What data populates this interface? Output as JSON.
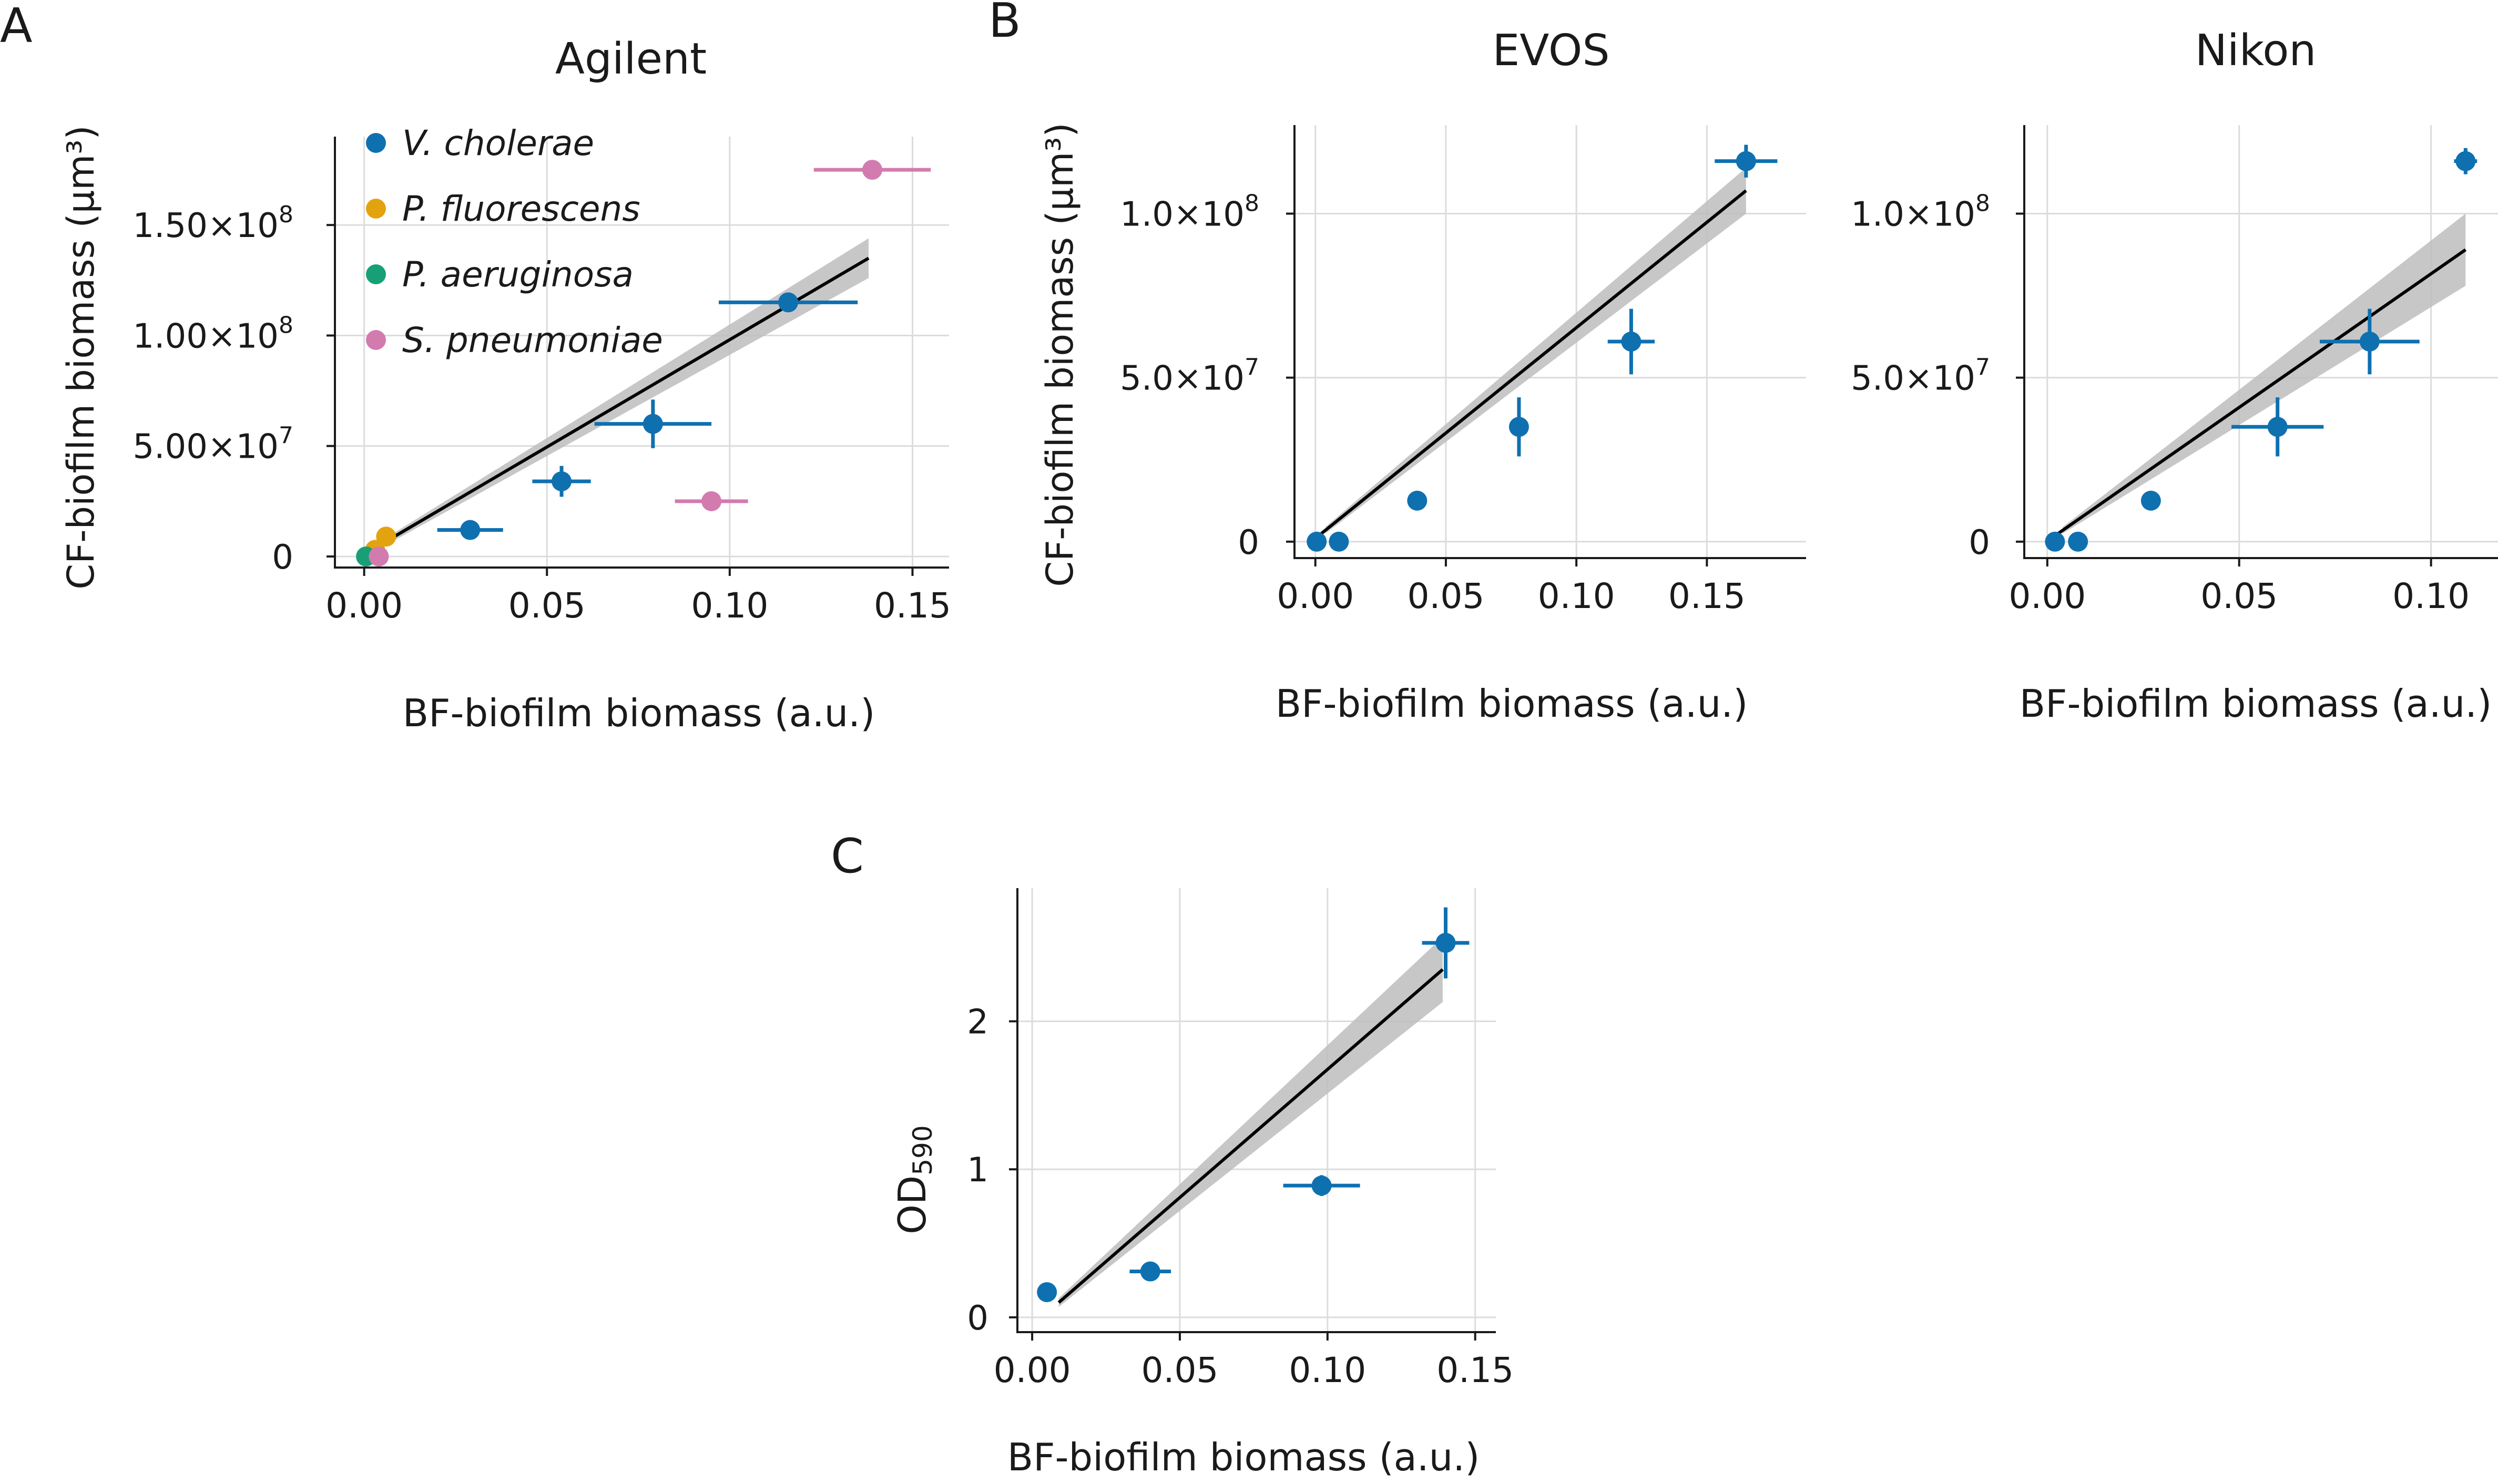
{
  "colors": {
    "vcholerae": "#0F70B0",
    "pfluorescens": "#E3A30F",
    "paeruginosa": "#17A077",
    "spneumoniae": "#D27BAF",
    "fit": "#000000",
    "band": "#bdbdbd",
    "grid": "#dcdcdc",
    "axis": "#1a1a1a"
  },
  "chart_data": [
    {
      "id": "A",
      "panel_label": "A",
      "type": "scatter",
      "title": "Agilent",
      "xlabel": "BF-biofilm biomass (a.u.)",
      "ylabel": "CF-biofilm biomass (µm³)",
      "xlim": [
        -0.008,
        0.16
      ],
      "ylim": [
        -5000000,
        190000000
      ],
      "xticks": [
        0,
        0.05,
        0.1,
        0.15
      ],
      "xtick_labels": [
        "0.00",
        "0.05",
        "0.10",
        "0.15"
      ],
      "yticks": [
        0,
        50000000,
        100000000,
        150000000
      ],
      "ytick_labels": [
        {
          "base": "0",
          "exp": ""
        },
        {
          "base": "5.00×10",
          "exp": "7"
        },
        {
          "base": "1.00×10",
          "exp": "8"
        },
        {
          "base": "1.50×10",
          "exp": "8"
        }
      ],
      "grid": true,
      "legend": {
        "placement": "top-left",
        "entries": [
          {
            "label": "V. cholerae",
            "color": "#0F70B0"
          },
          {
            "label": "P. fluorescens",
            "color": "#E3A30F"
          },
          {
            "label": "P. aeruginosa",
            "color": "#17A077"
          },
          {
            "label": "S. pneumoniae",
            "color": "#D27BAF"
          }
        ]
      },
      "fit": {
        "x": [
          0,
          0.138
        ],
        "y": [
          1000000,
          135000000
        ],
        "band_start": 0.004,
        "band_half": [
          1500000,
          9000000
        ]
      },
      "series": [
        {
          "name": "V. cholerae",
          "color": "#0F70B0",
          "points": [
            {
              "x": 0.029,
              "y": 12000000,
              "xerr": 0.009,
              "yerr": 0
            },
            {
              "x": 0.054,
              "y": 34000000,
              "xerr": 0.008,
              "yerr": 7000000
            },
            {
              "x": 0.079,
              "y": 60000000,
              "xerr": 0.016,
              "yerr": 11000000
            },
            {
              "x": 0.116,
              "y": 115000000,
              "xerr": 0.019,
              "yerr": 4000000
            }
          ]
        },
        {
          "name": "P. fluorescens",
          "color": "#E3A30F",
          "points": [
            {
              "x": 0.006,
              "y": 9000000,
              "xerr": 0,
              "yerr": 0
            },
            {
              "x": 0.003,
              "y": 3000000,
              "xerr": 0,
              "yerr": 0
            }
          ]
        },
        {
          "name": "P. aeruginosa",
          "color": "#17A077",
          "points": [
            {
              "x": 0.0005,
              "y": 0,
              "xerr": 0,
              "yerr": 0
            }
          ]
        },
        {
          "name": "S. pneumoniae",
          "color": "#D27BAF",
          "points": [
            {
              "x": 0.004,
              "y": 0,
              "xerr": 0,
              "yerr": 0
            },
            {
              "x": 0.095,
              "y": 25000000,
              "xerr": 0.01,
              "yerr": 0
            },
            {
              "x": 0.139,
              "y": 175000000,
              "xerr": 0.016,
              "yerr": 0
            }
          ]
        }
      ]
    },
    {
      "id": "B1",
      "panel_label": "B",
      "type": "scatter",
      "title": "EVOS",
      "xlabel": "BF-biofilm biomass (a.u.)",
      "ylabel": "CF-biofilm biomass (µm³)",
      "xlim": [
        -0.008,
        0.188
      ],
      "ylim": [
        -5000000,
        127000000
      ],
      "xticks": [
        0,
        0.05,
        0.1,
        0.15
      ],
      "xtick_labels": [
        "0.00",
        "0.05",
        "0.10",
        "0.15"
      ],
      "yticks": [
        0,
        50000000,
        100000000
      ],
      "ytick_labels": [
        {
          "base": "0",
          "exp": ""
        },
        {
          "base": "5.0×10",
          "exp": "7"
        },
        {
          "base": "1.0×10",
          "exp": "8"
        }
      ],
      "grid": true,
      "fit": {
        "x": [
          0,
          0.165
        ],
        "y": [
          1000000,
          107000000
        ],
        "band_start": 0.004,
        "band_half": [
          1000000,
          7000000
        ]
      },
      "series": [
        {
          "name": "",
          "color": "#0F70B0",
          "points": [
            {
              "x": 0.0005,
              "y": 0,
              "xerr": 0,
              "yerr": 0
            },
            {
              "x": 0.009,
              "y": 0,
              "xerr": 0,
              "yerr": 0
            },
            {
              "x": 0.039,
              "y": 12500000,
              "xerr": 0,
              "yerr": 0
            },
            {
              "x": 0.078,
              "y": 35000000,
              "xerr": 0,
              "yerr": 9000000
            },
            {
              "x": 0.121,
              "y": 61000000,
              "xerr": 0.009,
              "yerr": 10000000
            },
            {
              "x": 0.165,
              "y": 116000000,
              "xerr": 0.012,
              "yerr": 5000000
            }
          ]
        }
      ]
    },
    {
      "id": "B2",
      "panel_label": "",
      "type": "scatter",
      "title": "Nikon",
      "xlabel": "BF-biofilm biomass (a.u.)",
      "ylabel": "",
      "xlim": [
        -0.006,
        0.118
      ],
      "ylim": [
        -5000000,
        127000000
      ],
      "xticks": [
        0,
        0.05,
        0.1
      ],
      "xtick_labels": [
        "0.00",
        "0.05",
        "0.10"
      ],
      "yticks": [
        0,
        50000000,
        100000000
      ],
      "ytick_labels": [
        {
          "base": "0",
          "exp": ""
        },
        {
          "base": "5.0×10",
          "exp": "7"
        },
        {
          "base": "1.0×10",
          "exp": "8"
        }
      ],
      "grid": true,
      "fit": {
        "x": [
          0.001,
          0.109
        ],
        "y": [
          1000000,
          89000000
        ],
        "band_start": 0.004,
        "band_half": [
          1000000,
          11000000
        ]
      },
      "series": [
        {
          "name": "",
          "color": "#0F70B0",
          "points": [
            {
              "x": 0.002,
              "y": 0,
              "xerr": 0,
              "yerr": 0
            },
            {
              "x": 0.008,
              "y": 0,
              "xerr": 0,
              "yerr": 0
            },
            {
              "x": 0.027,
              "y": 12500000,
              "xerr": 0,
              "yerr": 0
            },
            {
              "x": 0.06,
              "y": 35000000,
              "xerr": 0.012,
              "yerr": 9000000
            },
            {
              "x": 0.084,
              "y": 61000000,
              "xerr": 0.013,
              "yerr": 10000000
            },
            {
              "x": 0.109,
              "y": 116000000,
              "xerr": 0.003,
              "yerr": 4000000
            }
          ]
        }
      ]
    },
    {
      "id": "C",
      "panel_label": "C",
      "type": "scatter",
      "title": "",
      "xlabel": "BF-biofilm biomass (a.u.)",
      "ylabel_base": "OD",
      "ylabel_sub": "590",
      "xlim": [
        -0.005,
        0.157
      ],
      "ylim": [
        -0.1,
        2.9
      ],
      "xticks": [
        0,
        0.05,
        0.1,
        0.15
      ],
      "xtick_labels": [
        "0.00",
        "0.05",
        "0.10",
        "0.15"
      ],
      "yticks": [
        0,
        1,
        2
      ],
      "ytick_labels": [
        {
          "base": "0",
          "exp": ""
        },
        {
          "base": "1",
          "exp": ""
        },
        {
          "base": "2",
          "exp": ""
        }
      ],
      "grid": true,
      "fit": {
        "x": [
          0.009,
          0.139
        ],
        "y": [
          0.1,
          2.35
        ],
        "band_start": 0.009,
        "band_half": [
          0.03,
          0.22
        ]
      },
      "series": [
        {
          "name": "",
          "color": "#0F70B0",
          "points": [
            {
              "x": 0.005,
              "y": 0.17,
              "xerr": 0,
              "yerr": 0
            },
            {
              "x": 0.04,
              "y": 0.31,
              "xerr": 0.007,
              "yerr": 0
            },
            {
              "x": 0.098,
              "y": 0.89,
              "xerr": 0.013,
              "yerr": 0.07
            },
            {
              "x": 0.14,
              "y": 2.53,
              "xerr": 0.008,
              "yerr": 0.24
            }
          ]
        }
      ]
    }
  ]
}
